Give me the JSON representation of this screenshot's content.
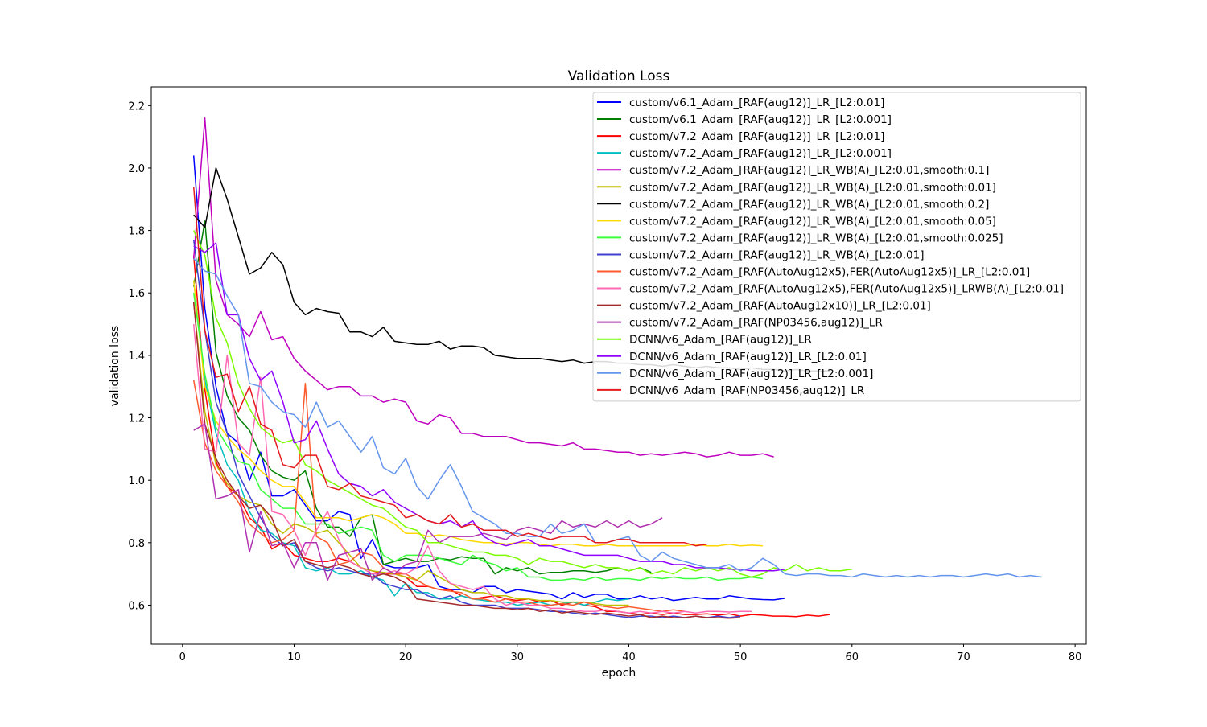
{
  "chart_data": {
    "type": "line",
    "title": "Validation Loss",
    "xlabel": "epoch",
    "ylabel": "validation loss",
    "xlim": [
      -2.8,
      81
    ],
    "ylim": [
      0.475,
      2.26
    ],
    "xticks": [
      0,
      10,
      20,
      30,
      40,
      50,
      60,
      70,
      80
    ],
    "yticks": [
      0.6,
      0.8,
      1.0,
      1.2,
      1.4,
      1.6,
      1.8,
      2.0,
      2.2
    ],
    "xtick_labels": [
      "0",
      "10",
      "20",
      "30",
      "40",
      "50",
      "60",
      "70",
      "80"
    ],
    "ytick_labels": [
      "0.6",
      "0.8",
      "1.0",
      "1.2",
      "1.4",
      "1.6",
      "1.8",
      "2.0",
      "2.2"
    ],
    "grid": false,
    "legend_position": "top-right",
    "series": [
      {
        "name": "custom/v6.1_Adam_[RAF(aug12)]_LR_[L2:0.01]",
        "color": "#0000ff",
        "y": [
          2.04,
          1.55,
          1.3,
          1.15,
          1.12,
          1.0,
          1.09,
          0.95,
          0.95,
          0.97,
          0.92,
          0.87,
          0.87,
          0.9,
          0.89,
          0.75,
          0.81,
          0.73,
          0.72,
          0.72,
          0.72,
          0.73,
          0.66,
          0.65,
          0.65,
          0.64,
          0.66,
          0.66,
          0.64,
          0.65,
          0.645,
          0.64,
          0.635,
          0.62,
          0.64,
          0.625,
          0.635,
          0.635,
          0.62,
          0.62,
          0.63,
          0.62,
          0.625,
          0.615,
          0.62,
          0.625,
          0.62,
          0.62,
          0.63,
          0.625,
          0.62,
          0.618,
          0.617,
          0.622
        ]
      },
      {
        "name": "custom/v6.1_Adam_[RAF(aug12)]_LR_[L2:0.001]",
        "color": "#008000",
        "y": [
          1.62,
          1.83,
          1.41,
          1.27,
          1.2,
          1.16,
          1.08,
          1.03,
          1.01,
          1.0,
          1.03,
          0.91,
          0.85,
          0.85,
          0.82,
          0.88,
          0.89,
          0.73,
          0.74,
          0.75,
          0.74,
          0.74,
          0.75,
          0.745,
          0.755,
          0.75,
          0.75,
          0.7,
          0.72,
          0.71,
          0.72,
          0.7,
          0.705,
          0.705,
          0.71,
          0.71,
          0.705,
          0.71,
          0.72,
          0.71,
          0.72,
          0.705
        ]
      },
      {
        "name": "custom/v7.2_Adam_[RAF(aug12)]_LR_[L2:0.01]",
        "color": "#ff0000",
        "y": [
          1.72,
          1.29,
          1.06,
          0.98,
          0.95,
          0.88,
          0.85,
          0.78,
          0.8,
          0.76,
          0.75,
          0.74,
          0.74,
          0.75,
          0.74,
          0.72,
          0.71,
          0.7,
          0.7,
          0.69,
          0.66,
          0.66,
          0.65,
          0.65,
          0.63,
          0.62,
          0.625,
          0.63,
          0.62,
          0.615,
          0.62,
          0.61,
          0.615,
          0.6,
          0.61,
          0.6,
          0.595,
          0.58,
          0.58,
          0.575,
          0.57,
          0.575,
          0.57,
          0.575,
          0.57,
          0.57,
          0.572,
          0.568,
          0.572,
          0.565,
          0.57,
          0.568,
          0.565,
          0.565,
          0.563,
          0.568,
          0.565,
          0.57
        ]
      },
      {
        "name": "custom/v7.2_Adam_[RAF(aug12)]_LR_[L2:0.001]",
        "color": "#00bfbf",
        "y": [
          1.64,
          1.32,
          1.15,
          1.05,
          1.0,
          0.9,
          0.84,
          0.83,
          0.8,
          0.79,
          0.72,
          0.71,
          0.72,
          0.7,
          0.7,
          0.71,
          0.69,
          0.68,
          0.63,
          0.67,
          0.64,
          0.64,
          0.62,
          0.62,
          0.63,
          0.62,
          0.615,
          0.61,
          0.61,
          0.6,
          0.605,
          0.61,
          0.6,
          0.605,
          0.61,
          0.6,
          0.61,
          0.62,
          0.615,
          0.62
        ]
      },
      {
        "name": "custom/v7.2_Adam_[RAF(aug12)]_LR_WB(A)_[L2:0.01,smooth:0.1]",
        "color": "#bf00bf",
        "y": [
          1.71,
          2.16,
          1.64,
          1.53,
          1.5,
          1.46,
          1.54,
          1.45,
          1.46,
          1.39,
          1.35,
          1.32,
          1.29,
          1.3,
          1.3,
          1.27,
          1.27,
          1.25,
          1.26,
          1.25,
          1.19,
          1.18,
          1.21,
          1.2,
          1.15,
          1.15,
          1.14,
          1.14,
          1.14,
          1.13,
          1.12,
          1.12,
          1.115,
          1.11,
          1.12,
          1.1,
          1.1,
          1.095,
          1.09,
          1.09,
          1.08,
          1.085,
          1.08,
          1.085,
          1.09,
          1.085,
          1.075,
          1.08,
          1.09,
          1.08,
          1.08,
          1.085,
          1.075
        ]
      },
      {
        "name": "custom/v7.2_Adam_[RAF(aug12)]_LR_WB(A)_[L2:0.01,smooth:0.01]",
        "color": "#bfbf00",
        "y": [
          1.57,
          1.22,
          1.05,
          0.99,
          0.95,
          0.93,
          0.92,
          0.86,
          0.83,
          0.86,
          0.85,
          0.83,
          0.84,
          0.8,
          0.76,
          0.72,
          0.71,
          0.705,
          0.7,
          0.69,
          0.68,
          0.71,
          0.69,
          0.67,
          0.65,
          0.64,
          0.64,
          0.63,
          0.63,
          0.62,
          0.62,
          0.615,
          0.615,
          0.61,
          0.61,
          0.61,
          0.605,
          0.6,
          0.6,
          0.6
        ]
      },
      {
        "name": "custom/v7.2_Adam_[RAF(aug12)]_LR_WB(A)_[L2:0.01,smooth:0.2]",
        "color": "#000000",
        "y": [
          1.85,
          1.81,
          2.0,
          1.9,
          1.78,
          1.66,
          1.68,
          1.73,
          1.69,
          1.57,
          1.53,
          1.55,
          1.54,
          1.535,
          1.475,
          1.475,
          1.46,
          1.49,
          1.445,
          1.44,
          1.435,
          1.435,
          1.445,
          1.42,
          1.43,
          1.43,
          1.425,
          1.4,
          1.395,
          1.39,
          1.39,
          1.39,
          1.385,
          1.38,
          1.385,
          1.375,
          1.38,
          1.38,
          1.375,
          1.375,
          1.37,
          1.37,
          1.365,
          1.37,
          1.365,
          1.36,
          1.365,
          1.36,
          1.36,
          1.355,
          1.36,
          1.355,
          1.355,
          1.35,
          1.355,
          1.35,
          1.35,
          1.35
        ]
      },
      {
        "name": "custom/v7.2_Adam_[RAF(aug12)]_LR_WB(A)_[L2:0.01,smooth:0.05]",
        "color": "#ffd700",
        "y": [
          1.64,
          1.3,
          1.19,
          1.14,
          1.1,
          1.07,
          1.03,
          1.0,
          0.98,
          0.98,
          0.93,
          0.88,
          0.88,
          0.88,
          0.87,
          0.88,
          0.89,
          0.88,
          0.86,
          0.83,
          0.83,
          0.82,
          0.825,
          0.82,
          0.81,
          0.805,
          0.8,
          0.8,
          0.795,
          0.8,
          0.8,
          0.795,
          0.79,
          0.795,
          0.795,
          0.79,
          0.79,
          0.795,
          0.79,
          0.79,
          0.79,
          0.79,
          0.79,
          0.79,
          0.79,
          0.795,
          0.79,
          0.79,
          0.795,
          0.79,
          0.792,
          0.79
        ]
      },
      {
        "name": "custom/v7.2_Adam_[RAF(aug12)]_LR_WB(A)_[L2:0.01,smooth:0.025]",
        "color": "#3bff3b",
        "y": [
          1.6,
          1.34,
          1.17,
          1.11,
          1.06,
          1.05,
          0.97,
          0.94,
          0.91,
          0.91,
          0.86,
          0.86,
          0.86,
          0.83,
          0.84,
          0.85,
          0.84,
          0.76,
          0.74,
          0.76,
          0.76,
          0.76,
          0.75,
          0.74,
          0.73,
          0.76,
          0.74,
          0.73,
          0.71,
          0.72,
          0.69,
          0.69,
          0.68,
          0.68,
          0.685,
          0.68,
          0.69,
          0.68,
          0.685,
          0.685,
          0.68,
          0.69,
          0.685,
          0.69,
          0.685,
          0.685,
          0.69,
          0.68,
          0.685,
          0.685,
          0.69,
          0.685
        ]
      },
      {
        "name": "custom/v7.2_Adam_[RAF(aug12)]_LR_WB(A)_[L2:0.01]",
        "color": "#4040cf",
        "y": [
          1.77,
          1.48,
          1.25,
          1.15,
          1.02,
          0.95,
          0.88,
          0.82,
          0.79,
          0.8,
          0.74,
          0.72,
          0.71,
          0.72,
          0.71,
          0.7,
          0.7,
          0.67,
          0.66,
          0.65,
          0.65,
          0.63,
          0.62,
          0.63,
          0.61,
          0.6,
          0.6,
          0.6,
          0.59,
          0.59,
          0.59,
          0.585,
          0.58,
          0.58,
          0.575,
          0.57,
          0.575,
          0.57,
          0.565,
          0.56,
          0.565,
          0.565,
          0.56,
          0.565,
          0.56,
          0.565,
          0.56,
          0.565,
          0.56,
          0.565
        ]
      },
      {
        "name": "custom/v7.2_Adam_[RAF(AutoAug12x5),FER(AutoAug12x5)]_LR_[L2:0.01]",
        "color": "#ff5a2d",
        "y": [
          1.32,
          1.12,
          1.03,
          0.98,
          0.93,
          0.86,
          0.83,
          0.8,
          0.81,
          0.84,
          1.31,
          0.82,
          0.8,
          0.73,
          0.74,
          0.77,
          0.76,
          0.72,
          0.7,
          0.7,
          0.68,
          0.66,
          0.65,
          0.645,
          0.64,
          0.62,
          0.62,
          0.61,
          0.62,
          0.61,
          0.61,
          0.6,
          0.6,
          0.605,
          0.6,
          0.61,
          0.6,
          0.595,
          0.59,
          0.595,
          0.59,
          0.585,
          0.58,
          0.585,
          0.58
        ]
      },
      {
        "name": "custom/v7.2_Adam_[RAF(AutoAug12x5),FER(AutoAug12x5)]_LRWB(A)_[L2:0.01]",
        "color": "#ff69b4",
        "y": [
          1.5,
          1.1,
          1.09,
          1.4,
          1.12,
          1.08,
          1.33,
          0.9,
          0.89,
          0.84,
          0.76,
          0.84,
          0.9,
          0.81,
          0.74,
          0.72,
          0.7,
          0.7,
          0.71,
          0.7,
          0.72,
          0.79,
          0.71,
          0.67,
          0.66,
          0.65,
          0.66,
          0.62,
          0.6,
          0.61,
          0.6,
          0.6,
          0.59,
          0.59,
          0.585,
          0.58,
          0.58,
          0.585,
          0.58,
          0.575,
          0.58,
          0.575,
          0.58,
          0.575,
          0.58,
          0.575,
          0.58,
          0.58,
          0.578,
          0.58,
          0.58
        ]
      },
      {
        "name": "custom/v7.2_Adam_[RAF(AutoAug12x10)]_LR_[L2:0.01]",
        "color": "#a52a2a",
        "y": [
          1.57,
          1.18,
          1.07,
          1.0,
          0.95,
          0.91,
          0.92,
          0.88,
          0.79,
          0.81,
          0.74,
          0.73,
          0.72,
          0.73,
          0.72,
          0.7,
          0.69,
          0.7,
          0.69,
          0.67,
          0.62,
          0.615,
          0.61,
          0.605,
          0.6,
          0.6,
          0.595,
          0.59,
          0.59,
          0.585,
          0.59,
          0.58,
          0.585,
          0.575,
          0.58,
          0.575,
          0.57,
          0.575,
          0.57,
          0.565,
          0.57,
          0.56,
          0.565,
          0.56,
          0.56,
          0.565,
          0.56,
          0.56,
          0.558,
          0.56
        ]
      },
      {
        "name": "custom/v7.2_Adam_[RAF(NP03456,aug12)]_LR",
        "color": "#b030b0",
        "y": [
          1.16,
          1.18,
          0.94,
          0.95,
          0.97,
          0.77,
          0.9,
          0.79,
          0.8,
          0.72,
          0.8,
          0.8,
          0.68,
          0.76,
          0.77,
          0.78,
          0.68,
          0.72,
          0.7,
          0.73,
          0.74,
          0.84,
          0.8,
          0.82,
          0.82,
          0.82,
          0.83,
          0.82,
          0.81,
          0.84,
          0.85,
          0.84,
          0.83,
          0.87,
          0.85,
          0.86,
          0.85,
          0.87,
          0.85,
          0.87,
          0.85,
          0.86,
          0.88
        ]
      },
      {
        "name": "DCNN/v6_Adam_[RAF(aug12)]_LR",
        "color": "#7cfc00",
        "y": [
          1.8,
          1.72,
          1.52,
          1.44,
          1.31,
          1.23,
          1.17,
          1.14,
          1.12,
          1.13,
          1.05,
          1.03,
          1.0,
          0.98,
          0.96,
          0.94,
          0.92,
          0.91,
          0.88,
          0.85,
          0.84,
          0.8,
          0.8,
          0.79,
          0.78,
          0.77,
          0.77,
          0.76,
          0.76,
          0.75,
          0.73,
          0.75,
          0.74,
          0.74,
          0.73,
          0.72,
          0.73,
          0.72,
          0.72,
          0.71,
          0.72,
          0.7,
          0.71,
          0.7,
          0.72,
          0.71,
          0.72,
          0.71,
          0.72,
          0.7,
          0.69,
          0.7,
          0.72,
          0.71,
          0.73,
          0.71,
          0.72,
          0.71,
          0.71,
          0.715
        ]
      },
      {
        "name": "DCNN/v6_Adam_[RAF(aug12)]_LR_[L2:0.01]",
        "color": "#8f00ff",
        "y": [
          1.75,
          1.73,
          1.76,
          1.53,
          1.53,
          1.39,
          1.32,
          1.35,
          1.25,
          1.12,
          1.13,
          1.19,
          1.1,
          1.02,
          0.99,
          0.98,
          0.95,
          0.97,
          0.93,
          0.91,
          0.89,
          0.87,
          0.86,
          0.87,
          0.85,
          0.87,
          0.82,
          0.8,
          0.79,
          0.8,
          0.81,
          0.79,
          0.79,
          0.78,
          0.77,
          0.76,
          0.76,
          0.76,
          0.76,
          0.75,
          0.74,
          0.74,
          0.74,
          0.73,
          0.73,
          0.72,
          0.72,
          0.72,
          0.715,
          0.715,
          0.71,
          0.71,
          0.71,
          0.715
        ]
      },
      {
        "name": "DCNN/v6_Adam_[RAF(aug12)]_LR_[L2:0.001]",
        "color": "#6495ed",
        "y": [
          1.71,
          1.67,
          1.66,
          1.59,
          1.53,
          1.31,
          1.3,
          1.25,
          1.22,
          1.21,
          1.17,
          1.25,
          1.17,
          1.19,
          1.14,
          1.09,
          1.14,
          1.04,
          1.02,
          1.07,
          0.98,
          0.94,
          1.0,
          1.05,
          0.98,
          0.9,
          0.88,
          0.86,
          0.83,
          0.83,
          0.82,
          0.82,
          0.86,
          0.83,
          0.84,
          0.86,
          0.8,
          0.8,
          0.81,
          0.82,
          0.76,
          0.74,
          0.77,
          0.75,
          0.74,
          0.73,
          0.72,
          0.72,
          0.73,
          0.71,
          0.72,
          0.75,
          0.73,
          0.7,
          0.695,
          0.7,
          0.7,
          0.695,
          0.695,
          0.69,
          0.7,
          0.695,
          0.69,
          0.695,
          0.69,
          0.695,
          0.69,
          0.695,
          0.695,
          0.69,
          0.695,
          0.7,
          0.695,
          0.7,
          0.69,
          0.695,
          0.69
        ]
      },
      {
        "name": "DCNN/v6_Adam_[RAF(NP03456,aug12)]_LR",
        "color": "#e41a1c",
        "y": [
          1.94,
          1.48,
          1.33,
          1.34,
          1.22,
          1.3,
          1.18,
          1.16,
          1.05,
          1.04,
          1.08,
          1.08,
          0.98,
          0.97,
          0.99,
          0.95,
          0.94,
          0.93,
          0.92,
          0.88,
          0.89,
          0.87,
          0.86,
          0.89,
          0.85,
          0.86,
          0.84,
          0.84,
          0.84,
          0.82,
          0.83,
          0.82,
          0.81,
          0.82,
          0.82,
          0.82,
          0.8,
          0.8,
          0.81,
          0.81,
          0.8,
          0.8,
          0.8,
          0.8,
          0.8,
          0.79,
          0.795
        ]
      }
    ]
  }
}
